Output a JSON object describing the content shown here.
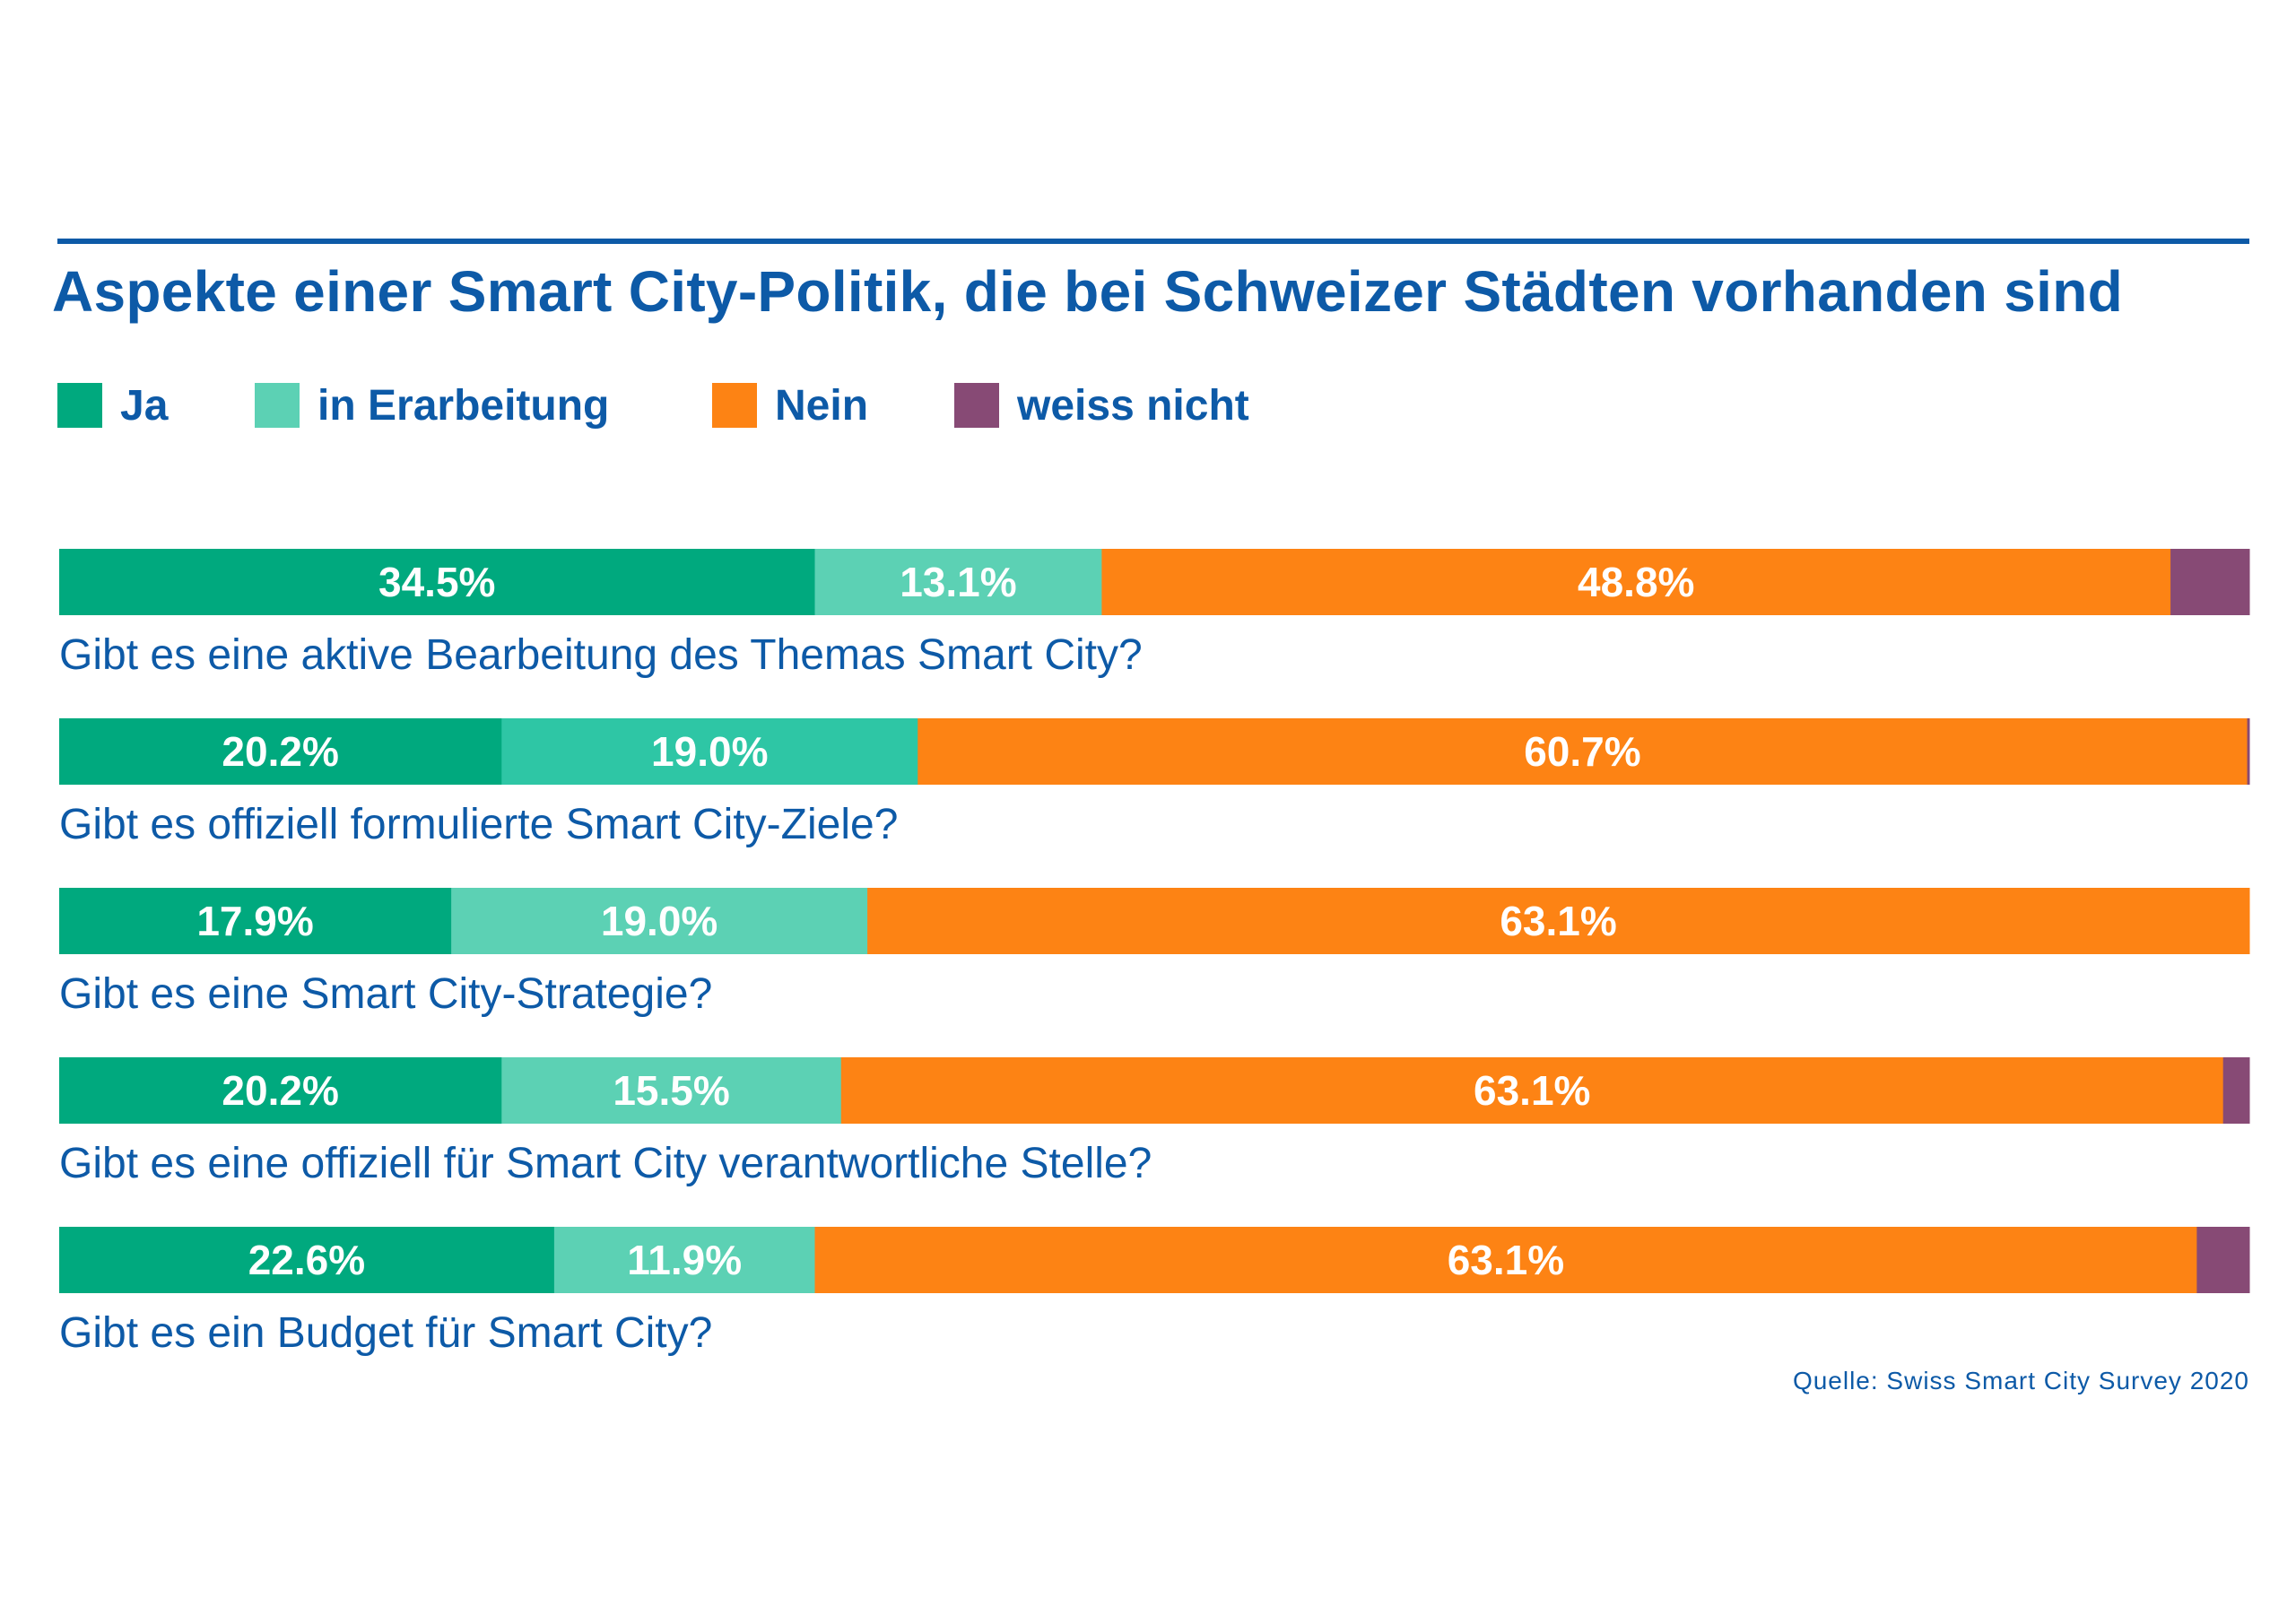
{
  "title": "Aspekte einer Smart City-Politik, die bei Schweizer Städten vorhanden sind",
  "source": "Quelle: Swiss Smart City Survey 2020",
  "colors": {
    "title": "#0d5aa7",
    "ja": "#00a97e",
    "in_erarbeitung": "#5cd1b4",
    "in_erarbeitung_row2": "#2ec6a5",
    "nein": "#fd8314",
    "weiss_nicht": "#874a75"
  },
  "chart_data": {
    "type": "bar",
    "orientation": "horizontal",
    "stacked": true,
    "title": "Aspekte einer Smart City-Politik, die bei Schweizer Städten vorhanden sind",
    "xlim": [
      0,
      100
    ],
    "legend_position": "top-left",
    "legend": [
      "Ja",
      "in Erarbeitung",
      "Nein",
      "weiss nicht"
    ],
    "categories": [
      "Gibt es eine aktive Bearbeitung des Themas Smart City?",
      "Gibt es offiziell formulierte Smart City-Ziele?",
      "Gibt es eine Smart City-Strategie?",
      "Gibt es eine offiziell für Smart City verantwortliche Stelle?",
      "Gibt es ein Budget für Smart City?"
    ],
    "series": [
      {
        "name": "Ja",
        "values": [
          34.5,
          20.2,
          17.9,
          20.2,
          22.6
        ],
        "labels": [
          "34.5%",
          "20.2%",
          "17.9%",
          "20.2%",
          "22.6%"
        ]
      },
      {
        "name": "in Erarbeitung",
        "values": [
          13.1,
          19.0,
          19.0,
          15.5,
          11.9
        ],
        "labels": [
          "13.1%",
          "19.0%",
          "19.0%",
          "15.5%",
          "11.9%"
        ]
      },
      {
        "name": "Nein",
        "values": [
          48.8,
          60.7,
          63.1,
          63.1,
          63.1
        ],
        "labels": [
          "48.8%",
          "60.7%",
          "63.1%",
          "63.1%",
          "63.1%"
        ]
      },
      {
        "name": "weiss nicht",
        "values": [
          3.6,
          0.1,
          0,
          1.2,
          2.4
        ],
        "labels": [
          "",
          "",
          "",
          "",
          ""
        ]
      }
    ]
  }
}
